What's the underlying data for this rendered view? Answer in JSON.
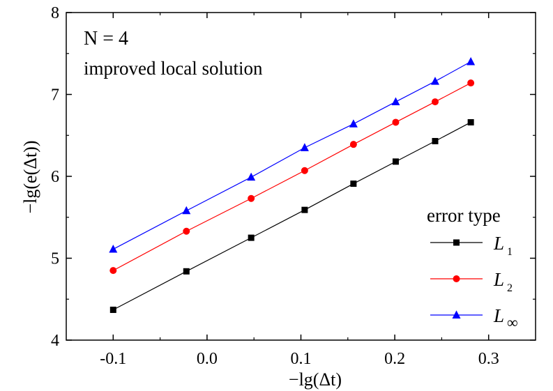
{
  "chart_data": {
    "type": "line",
    "title": "",
    "xlabel": "−lg(Δt)",
    "ylabel": "−lg(e(Δt))",
    "xlim": [
      -0.15,
      0.35
    ],
    "ylim": [
      4,
      8
    ],
    "x_ticks": [
      -0.1,
      0.0,
      0.1,
      0.2,
      0.3
    ],
    "x_tick_labels": [
      "-0.1",
      "0.0",
      "0.1",
      "0.2",
      "0.3"
    ],
    "y_ticks": [
      4,
      5,
      6,
      7,
      8
    ],
    "y_tick_labels": [
      "4",
      "5",
      "6",
      "7",
      "8"
    ],
    "grid": false,
    "annotations": [
      "N = 4",
      "improved local solution"
    ],
    "legend": {
      "title": "error type",
      "placement": "bottom-right"
    },
    "x": [
      -0.1,
      -0.022,
      0.047,
      0.104,
      0.156,
      0.201,
      0.243,
      0.281
    ],
    "series": [
      {
        "name": "L1",
        "label_main": "L",
        "label_sub": "1",
        "color": "#000000",
        "marker": "square",
        "values": [
          4.37,
          4.84,
          5.25,
          5.59,
          5.91,
          6.18,
          6.43,
          6.66
        ]
      },
      {
        "name": "L2",
        "label_main": "L",
        "label_sub": "2",
        "color": "#ff0000",
        "marker": "circle",
        "values": [
          4.85,
          5.33,
          5.73,
          6.07,
          6.39,
          6.66,
          6.91,
          7.14
        ]
      },
      {
        "name": "L∞",
        "label_main": "L",
        "label_sub": "∞",
        "color": "#0000ff",
        "marker": "triangle",
        "values": [
          5.11,
          5.58,
          5.99,
          6.35,
          6.64,
          6.91,
          7.16,
          7.4
        ]
      }
    ]
  }
}
